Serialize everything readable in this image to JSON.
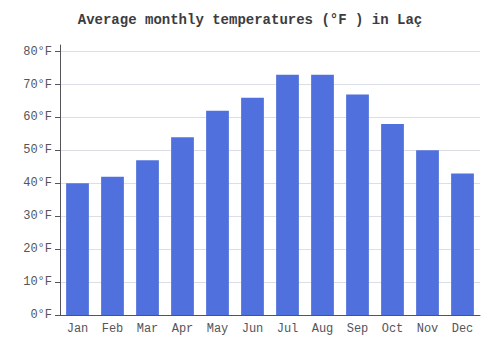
{
  "chart_data": {
    "type": "bar",
    "title": "Average monthly temperatures (°F ) in Laç",
    "categories": [
      "Jan",
      "Feb",
      "Mar",
      "Apr",
      "May",
      "Jun",
      "Jul",
      "Aug",
      "Sep",
      "Oct",
      "Nov",
      "Dec"
    ],
    "values": [
      40,
      42,
      47,
      54,
      62,
      66,
      73,
      73,
      67,
      58,
      50,
      43
    ],
    "ylim": [
      0,
      82
    ],
    "yticks": [
      {
        "value": 0,
        "label": "0°F"
      },
      {
        "value": 10,
        "label": "10°F"
      },
      {
        "value": 20,
        "label": "20°F"
      },
      {
        "value": 30,
        "label": "30°F"
      },
      {
        "value": 40,
        "label": "40°F"
      },
      {
        "value": 50,
        "label": "50°F"
      },
      {
        "value": 60,
        "label": "60°F"
      },
      {
        "value": 70,
        "label": "70°F"
      },
      {
        "value": 80,
        "label": "80°F"
      }
    ],
    "grid": true
  }
}
